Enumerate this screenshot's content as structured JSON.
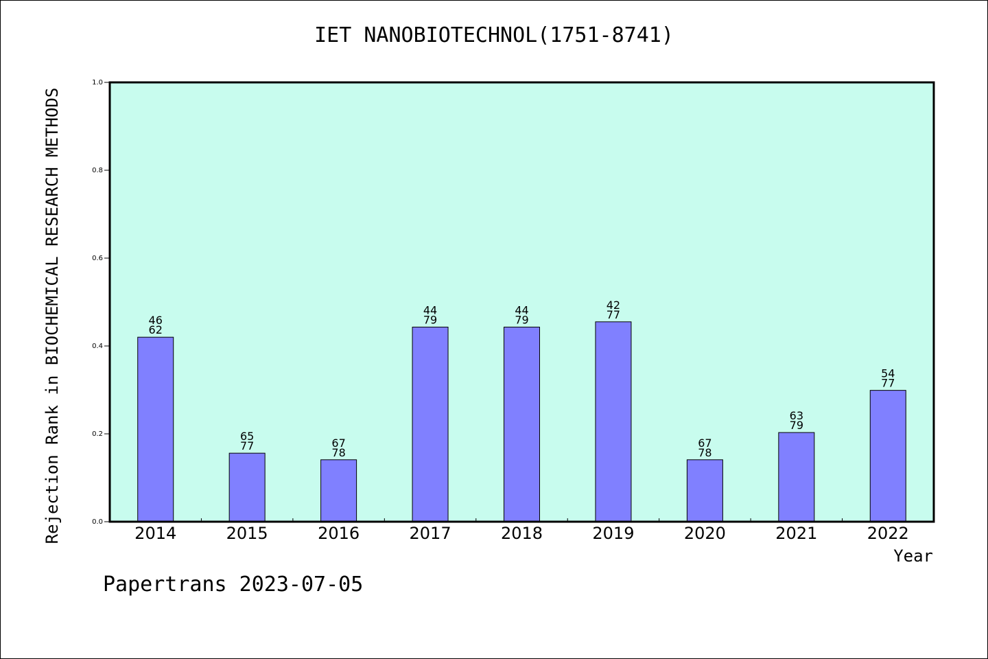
{
  "chart_data": {
    "type": "bar",
    "title": "IET NANOBIOTECHNOL(1751-8741)",
    "xlabel": "Year",
    "ylabel": "Rejection Rank in BIOCHEMICAL RESEARCH METHODS",
    "categories": [
      "2014",
      "2015",
      "2016",
      "2017",
      "2018",
      "2019",
      "2020",
      "2021",
      "2022"
    ],
    "values": [
      0.42,
      0.156,
      0.141,
      0.443,
      0.443,
      0.455,
      0.141,
      0.203,
      0.299
    ],
    "annotations": [
      {
        "top": "46",
        "bottom": "62"
      },
      {
        "top": "65",
        "bottom": "77"
      },
      {
        "top": "67",
        "bottom": "78"
      },
      {
        "top": "44",
        "bottom": "79"
      },
      {
        "top": "44",
        "bottom": "79"
      },
      {
        "top": "42",
        "bottom": "77"
      },
      {
        "top": "67",
        "bottom": "78"
      },
      {
        "top": "63",
        "bottom": "79"
      },
      {
        "top": "54",
        "bottom": "77"
      }
    ],
    "ylim": [
      0,
      1.0
    ],
    "yticks": [
      "0.0",
      "0.2",
      "0.4",
      "0.6",
      "0.8",
      "1.0"
    ],
    "grid": false,
    "colors": {
      "plot_background": "#c8fcee",
      "bar_fill": "#8080ff",
      "bar_edge": "#000000"
    }
  },
  "footer": "Papertrans 2023-07-05"
}
